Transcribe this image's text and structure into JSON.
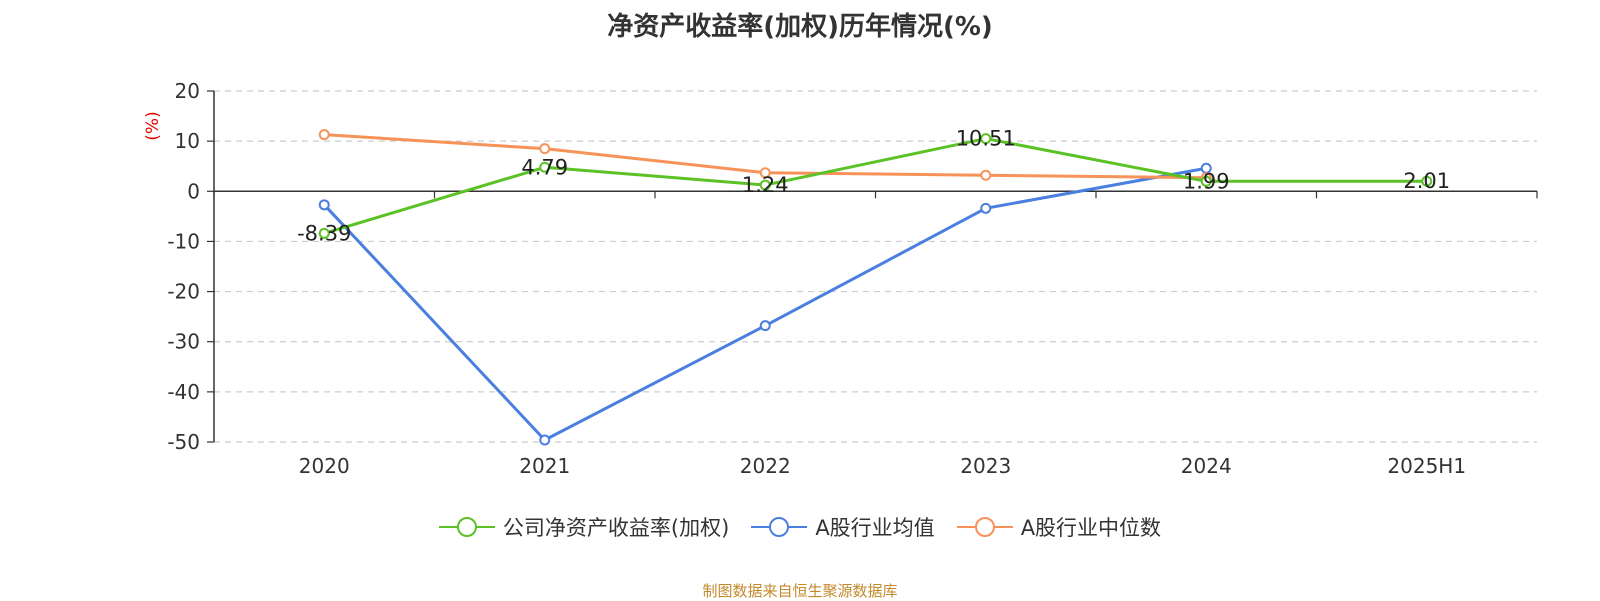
{
  "page": {
    "title": "净资产收益率(加权)历年情况(%)",
    "source": "制图数据来自恒生聚源数据库"
  },
  "chart_data": {
    "type": "line",
    "title": "净资产收益率(加权)历年情况(%)",
    "ylabel": "(%)",
    "xlabel": "",
    "categories": [
      "2020",
      "2021",
      "2022",
      "2023",
      "2024",
      "2025H1"
    ],
    "ylim": [
      -50,
      20
    ],
    "yticks": [
      20,
      10,
      0,
      -10,
      -20,
      -30,
      -40,
      -50
    ],
    "grid": true,
    "legend_position": "bottom",
    "series": [
      {
        "name": "公司净资产收益率(加权)",
        "color": "#5bc226",
        "values": [
          -8.39,
          4.79,
          1.24,
          10.51,
          1.99,
          2.01
        ],
        "data_labels": [
          "-8.39",
          "4.79",
          "1.24",
          "10.51",
          "1.99",
          "2.01"
        ]
      },
      {
        "name": "A股行业均值",
        "color": "#4a7fe0",
        "values": [
          -2.7,
          -49.6,
          -26.8,
          -3.4,
          4.6,
          null
        ]
      },
      {
        "name": "A股行业中位数",
        "color": "#f79259",
        "values": [
          11.3,
          8.5,
          3.7,
          3.2,
          2.7,
          null
        ]
      }
    ]
  }
}
